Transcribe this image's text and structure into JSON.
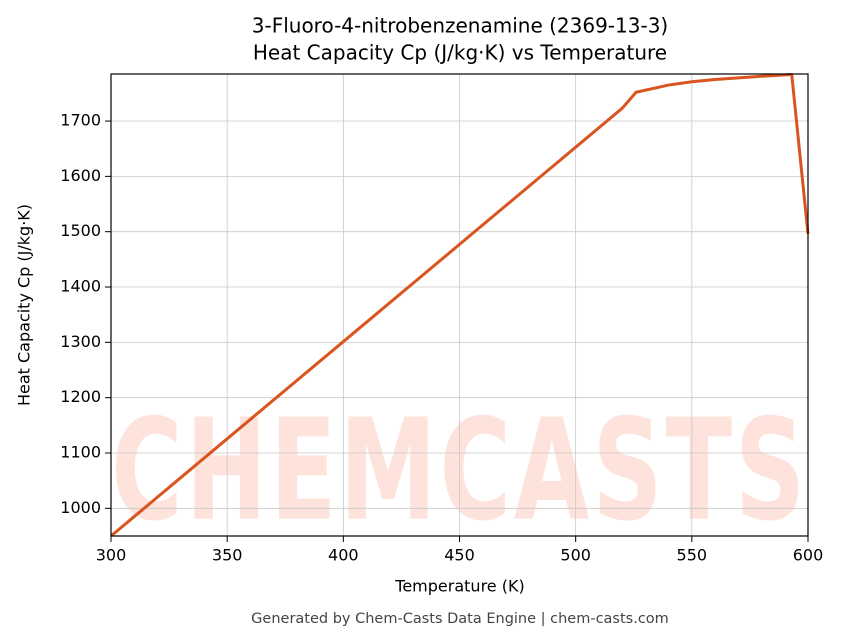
{
  "chart_data": {
    "type": "line",
    "title": "3-Fluoro-4-nitrobenzenamine (2369-13-3)",
    "subtitle": "Heat Capacity Cp (J/kg·K) vs Temperature",
    "x_label": "Temperature (K)",
    "y_label": "Heat Capacity Cp (J/kg·K)",
    "footer": "Generated by Chem-Casts Data Engine | chem-casts.com",
    "watermark": "CHEMCASTS",
    "x": [
      300,
      520,
      526,
      540,
      550,
      560,
      580,
      593,
      600
    ],
    "series": [
      {
        "name": "Heat Capacity Cp",
        "color": "#d9541e",
        "values": [
          950,
          1723,
          1752,
          1765,
          1771,
          1775,
          1781,
          1784,
          1496
        ]
      }
    ],
    "xlim": [
      300,
      600
    ],
    "xticks": [
      300,
      350,
      400,
      450,
      500,
      550,
      600
    ],
    "ylim": [
      950,
      1785
    ],
    "yticks": [
      1000,
      1100,
      1200,
      1300,
      1400,
      1500,
      1600,
      1700
    ],
    "grid": true
  }
}
